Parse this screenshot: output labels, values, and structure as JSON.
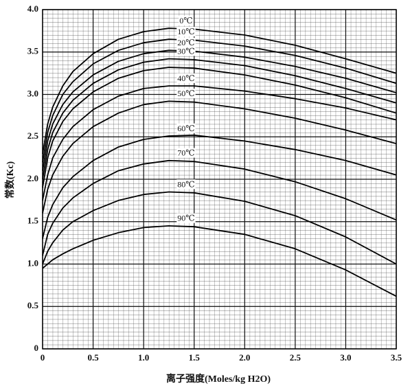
{
  "chart_data": {
    "type": "line",
    "xlabel": "离子强度(Moles/kg H2O)",
    "ylabel": "常数(Kc)",
    "x": [
      0,
      0.05,
      0.1,
      0.2,
      0.3,
      0.5,
      0.75,
      1.0,
      1.25,
      1.5,
      2.0,
      2.5,
      3.0,
      3.5
    ],
    "series": [
      {
        "name": "0℃",
        "color": "#000000",
        "values": [
          2.3,
          2.65,
          2.85,
          3.1,
          3.27,
          3.48,
          3.65,
          3.74,
          3.78,
          3.77,
          3.7,
          3.58,
          3.42,
          3.25
        ]
      },
      {
        "name": "10℃",
        "color": "#000000",
        "values": [
          2.2,
          2.55,
          2.75,
          3.0,
          3.15,
          3.36,
          3.52,
          3.61,
          3.65,
          3.64,
          3.57,
          3.46,
          3.31,
          3.13
        ]
      },
      {
        "name": "20℃",
        "color": "#000000",
        "values": [
          2.1,
          2.45,
          2.65,
          2.88,
          3.03,
          3.23,
          3.39,
          3.48,
          3.52,
          3.51,
          3.44,
          3.33,
          3.19,
          3.02
        ]
      },
      {
        "name": "30℃",
        "color": "#000000",
        "values": [
          2.0,
          2.35,
          2.55,
          2.78,
          2.93,
          3.13,
          3.29,
          3.38,
          3.42,
          3.41,
          3.34,
          3.22,
          3.07,
          2.9
        ]
      },
      {
        "color": "#000000",
        "values": [
          1.9,
          2.25,
          2.45,
          2.68,
          2.83,
          3.03,
          3.19,
          3.28,
          3.32,
          3.31,
          3.23,
          3.11,
          2.96,
          2.78
        ]
      },
      {
        "name": "40℃",
        "color": "#000000",
        "values": [
          1.75,
          2.05,
          2.25,
          2.47,
          2.62,
          2.82,
          2.98,
          3.07,
          3.1,
          3.1,
          3.04,
          2.95,
          2.84,
          2.7
        ]
      },
      {
        "name": "50℃",
        "color": "#000000",
        "values": [
          1.6,
          1.88,
          2.05,
          2.27,
          2.42,
          2.62,
          2.78,
          2.88,
          2.92,
          2.91,
          2.83,
          2.72,
          2.58,
          2.42
        ]
      },
      {
        "name": "60℃",
        "color": "#000000",
        "values": [
          1.3,
          1.55,
          1.7,
          1.9,
          2.03,
          2.22,
          2.38,
          2.47,
          2.51,
          2.52,
          2.45,
          2.35,
          2.22,
          2.05
        ]
      },
      {
        "name": "70℃",
        "color": "#000000",
        "values": [
          1.1,
          1.35,
          1.48,
          1.66,
          1.78,
          1.95,
          2.1,
          2.18,
          2.22,
          2.21,
          2.12,
          1.97,
          1.77,
          1.52
        ]
      },
      {
        "name": "80℃",
        "color": "#000000",
        "values": [
          1.0,
          1.15,
          1.25,
          1.4,
          1.5,
          1.63,
          1.75,
          1.82,
          1.85,
          1.84,
          1.74,
          1.57,
          1.32,
          1.0
        ]
      },
      {
        "name": "90℃",
        "color": "#000000",
        "values": [
          0.95,
          1.0,
          1.05,
          1.12,
          1.18,
          1.28,
          1.37,
          1.43,
          1.45,
          1.44,
          1.35,
          1.18,
          0.93,
          0.62
        ]
      }
    ],
    "xlim": [
      0,
      3.5
    ],
    "xticks": [
      0,
      0.5,
      {
        "value": 1,
        "label": "1.0"
      },
      1.5,
      {
        "value": 2,
        "label": "2.0"
      },
      2.5,
      {
        "value": 3,
        "label": "3.0"
      },
      3.5
    ],
    "ylim": [
      0,
      4
    ],
    "yticks": [
      0,
      0.5,
      {
        "value": 1,
        "label": "1.0"
      },
      1.5,
      {
        "value": 2,
        "label": "2.0"
      },
      2.5,
      {
        "value": 3,
        "label": "3.0"
      },
      3.5,
      {
        "value": 4,
        "label": "4.0"
      }
    ],
    "grid": true
  }
}
